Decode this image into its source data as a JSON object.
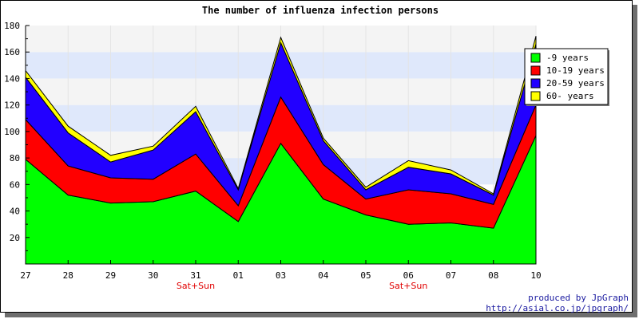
{
  "chart_data": {
    "type": "area",
    "stacked": true,
    "title": "The number of influenza infection persons",
    "categories": [
      "27",
      "28",
      "29",
      "30",
      "31",
      "01",
      "03",
      "04",
      "05",
      "06",
      "07",
      "08",
      "10"
    ],
    "weekend_labels": [
      {
        "category": "31",
        "label": "Sat+Sun"
      },
      {
        "category": "06",
        "label": "Sat+Sun"
      }
    ],
    "ylim": [
      0,
      180
    ],
    "yticks": [
      20,
      40,
      60,
      80,
      100,
      120,
      140,
      160,
      180
    ],
    "band_colors": [
      "#f4f4f4",
      "#dfe8fb"
    ],
    "legend_position": "top-right",
    "series": [
      {
        "name": "-9 years",
        "color": "#00ff00",
        "values": [
          79,
          52,
          46,
          47,
          55,
          32,
          91,
          49,
          37,
          30,
          31,
          27,
          97
        ]
      },
      {
        "name": "10-19 years",
        "color": "#ff0000",
        "values": [
          30,
          22,
          19,
          17,
          28,
          12,
          35,
          26,
          12,
          26,
          22,
          18,
          23
        ]
      },
      {
        "name": "20-59 years",
        "color": "#2200ff",
        "values": [
          32,
          25,
          12,
          22,
          32,
          12,
          41,
          18,
          7,
          17,
          15,
          7,
          46
        ]
      },
      {
        "name": "60- years",
        "color": "#ffff00",
        "values": [
          5,
          5,
          5,
          3,
          4,
          1,
          4,
          2,
          2,
          5,
          3,
          1,
          6
        ]
      }
    ]
  },
  "footer": {
    "line1": "produced by JpGraph",
    "line2": "http://asial.co.jp/jpgraph/"
  }
}
